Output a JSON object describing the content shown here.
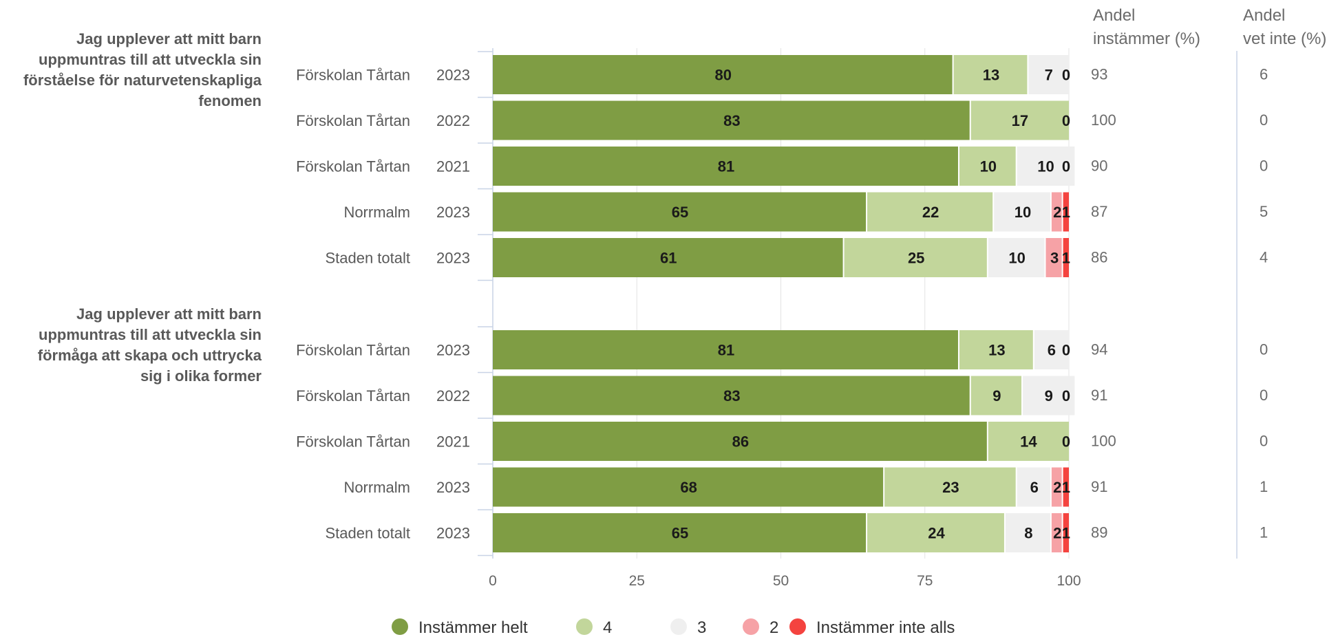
{
  "chart_data": {
    "type": "bar",
    "orientation": "horizontal",
    "stacked": true,
    "xlim": [
      0,
      100
    ],
    "x_ticks": [
      "0",
      "25",
      "50",
      "75",
      "100"
    ],
    "grid": true,
    "legend_position": "bottom",
    "column_headers": [
      [
        "Andel",
        "instämmer (%)"
      ],
      [
        "Andel",
        "vet inte (%)"
      ]
    ],
    "series": [
      {
        "name": "Instämmer helt",
        "color": "#7f9d44"
      },
      {
        "name": "4",
        "color": "#c2d69b"
      },
      {
        "name": "3",
        "color": "#efefef"
      },
      {
        "name": "2",
        "color": "#f6a2a6"
      },
      {
        "name": "Instämmer inte alls",
        "color": "#f4433f"
      }
    ],
    "groups": [
      {
        "question_lines": [
          "Jag upplever att mitt barn",
          "uppmuntras till att utveckla sin",
          "förståelse för naturvetenskapliga",
          "fenomen"
        ],
        "rows": [
          {
            "unit": "Förskolan Tårtan",
            "year": "2023",
            "values": [
              80,
              13,
              7,
              0,
              0
            ],
            "labels": [
              "80",
              "13",
              "7",
              "0",
              ""
            ],
            "andel_instammer": "93",
            "andel_vet_inte": "6"
          },
          {
            "unit": "Förskolan Tårtan",
            "year": "2022",
            "values": [
              83,
              17,
              0,
              0,
              0
            ],
            "labels": [
              "83",
              "17",
              "0",
              "",
              ""
            ],
            "andel_instammer": "100",
            "andel_vet_inte": "0"
          },
          {
            "unit": "Förskolan Tårtan",
            "year": "2021",
            "values": [
              81,
              10,
              10,
              0,
              0
            ],
            "labels": [
              "81",
              "10",
              "10",
              "0",
              ""
            ],
            "andel_instammer": "90",
            "andel_vet_inte": "0"
          },
          {
            "unit": "Norrmalm",
            "year": "2023",
            "values": [
              65,
              22,
              10,
              2,
              1
            ],
            "labels": [
              "65",
              "22",
              "10",
              "2",
              "1"
            ],
            "andel_instammer": "87",
            "andel_vet_inte": "5"
          },
          {
            "unit": "Staden totalt",
            "year": "2023",
            "values": [
              61,
              25,
              10,
              3,
              1
            ],
            "labels": [
              "61",
              "25",
              "10",
              "3",
              "1"
            ],
            "andel_instammer": "86",
            "andel_vet_inte": "4"
          }
        ]
      },
      {
        "question_lines": [
          "Jag upplever att mitt barn",
          "uppmuntras till att utveckla sin",
          "förmåga att skapa och uttrycka",
          "sig i olika former"
        ],
        "rows": [
          {
            "unit": "Förskolan Tårtan",
            "year": "2023",
            "values": [
              81,
              13,
              6,
              0,
              0
            ],
            "labels": [
              "81",
              "13",
              "6",
              "0",
              ""
            ],
            "andel_instammer": "94",
            "andel_vet_inte": "0"
          },
          {
            "unit": "Förskolan Tårtan",
            "year": "2022",
            "values": [
              83,
              9,
              9,
              0,
              0
            ],
            "labels": [
              "83",
              "9",
              "9",
              "0",
              ""
            ],
            "andel_instammer": "91",
            "andel_vet_inte": "0"
          },
          {
            "unit": "Förskolan Tårtan",
            "year": "2021",
            "values": [
              86,
              14,
              0,
              0,
              0
            ],
            "labels": [
              "86",
              "14",
              "0",
              "",
              ""
            ],
            "andel_instammer": "100",
            "andel_vet_inte": "0"
          },
          {
            "unit": "Norrmalm",
            "year": "2023",
            "values": [
              68,
              23,
              6,
              2,
              1
            ],
            "labels": [
              "68",
              "23",
              "6",
              "2",
              "1"
            ],
            "andel_instammer": "91",
            "andel_vet_inte": "1"
          },
          {
            "unit": "Staden totalt",
            "year": "2023",
            "values": [
              65,
              24,
              8,
              2,
              1
            ],
            "labels": [
              "65",
              "24",
              "8",
              "2",
              "1"
            ],
            "andel_instammer": "89",
            "andel_vet_inte": "1"
          }
        ]
      }
    ]
  }
}
